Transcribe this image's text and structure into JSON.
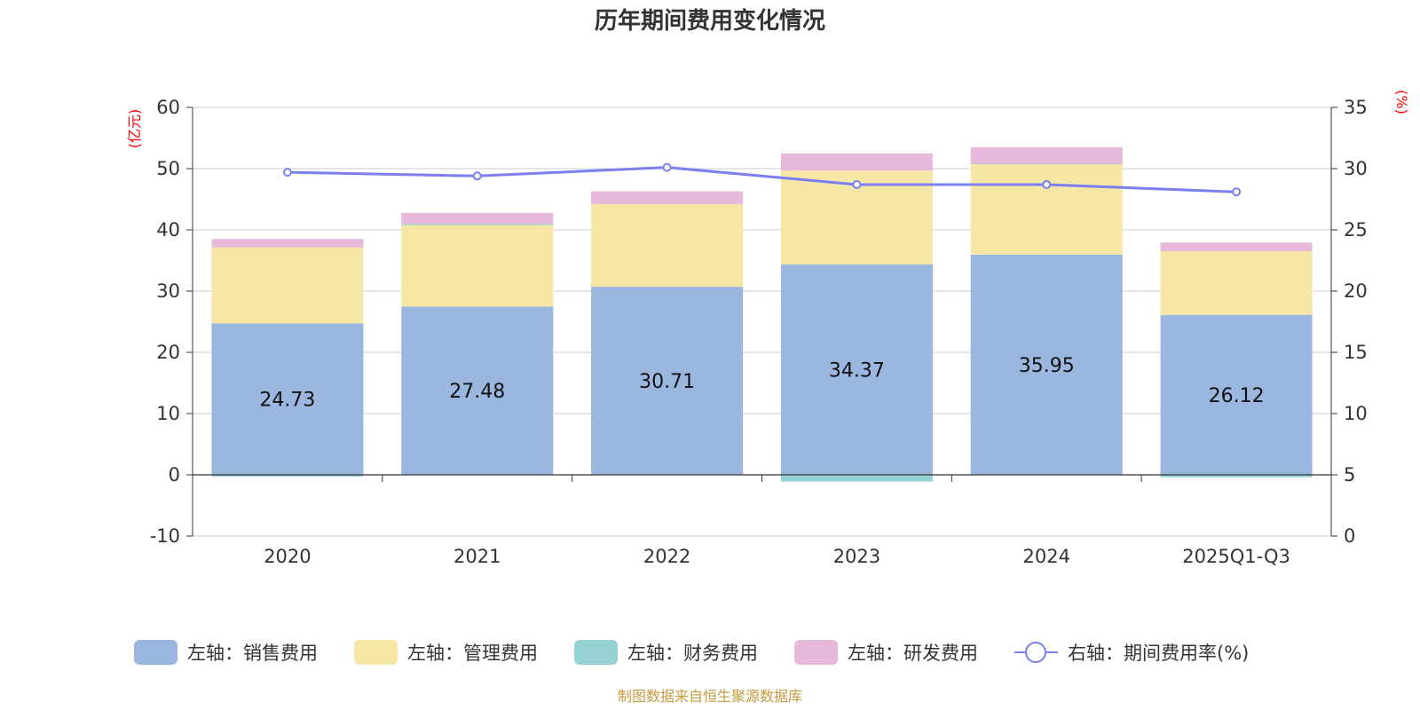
{
  "chart_data": {
    "type": "bar",
    "title": "历年期间费用变化情况",
    "categories": [
      "2020",
      "2021",
      "2022",
      "2023",
      "2024",
      "2025Q1-Q3"
    ],
    "left_axis": {
      "unit": "(亿元)",
      "ylim": [
        -10,
        60
      ],
      "ticks": [
        "60",
        "50",
        "40",
        "30",
        "20",
        "10",
        "0",
        "-10"
      ]
    },
    "right_axis": {
      "unit": "(%)",
      "ylim": [
        0,
        35
      ],
      "ticks": [
        "35",
        "30",
        "25",
        "20",
        "15",
        "10",
        "5",
        "0"
      ]
    },
    "series": [
      {
        "name": "左轴：销售费用",
        "type": "bar",
        "color": "#9bb7e0",
        "values": [
          24.73,
          27.48,
          30.71,
          34.37,
          35.95,
          26.12
        ],
        "labels": [
          "24.73",
          "27.48",
          "30.71",
          "34.37",
          "35.95",
          "26.12"
        ]
      },
      {
        "name": "左轴：管理费用",
        "type": "bar",
        "color": "#f7e7a6",
        "values": [
          12.4,
          13.3,
          13.5,
          15.3,
          14.8,
          10.4
        ]
      },
      {
        "name": "左轴：财务费用",
        "type": "bar",
        "color": "#96d2d4",
        "values": [
          -0.3,
          0.2,
          -0.05,
          -1.1,
          0.05,
          -0.4
        ]
      },
      {
        "name": "左轴：研发费用",
        "type": "bar",
        "color": "#e8b9da",
        "values": [
          1.4,
          1.8,
          2.1,
          2.8,
          2.7,
          1.4
        ]
      },
      {
        "name": "右轴：期间费用率(%)",
        "type": "line",
        "color": "#7b7ff0",
        "values": [
          29.7,
          29.4,
          30.1,
          28.7,
          28.7,
          28.1
        ]
      }
    ],
    "source": "制图数据来自恒生聚源数据库"
  },
  "colors": {
    "axis_unit": "#ff0000",
    "source": "#c79a3c",
    "grid": "#cccccc",
    "axis": "#333333"
  }
}
